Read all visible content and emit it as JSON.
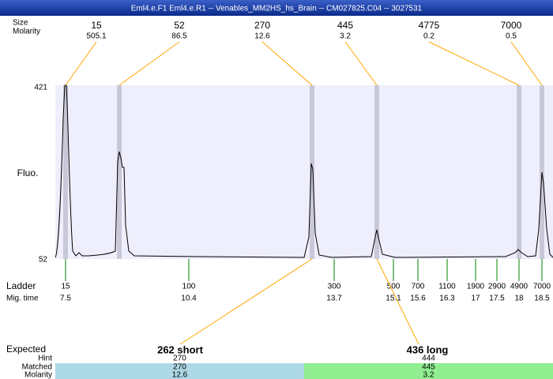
{
  "title": "Eml4.e.F1  Eml4.e.R1 -- Venables_MM2HS_hs_Brain -- CM027825.C04 -- 3027531",
  "row_labels": {
    "size": "Size",
    "molarity": "Molarity",
    "fluo": "Fluo.",
    "ladder": "Ladder",
    "mig_time": "Mig. time",
    "expected": "Expected",
    "hint": "Hint",
    "matched": "Matched",
    "exp_molarity": "Molarity"
  },
  "y_labels": [
    "421",
    "52"
  ],
  "peaks": [
    {
      "size": "15",
      "molarity": "505.1"
    },
    {
      "size": "52",
      "molarity": "86.5"
    },
    {
      "size": "270",
      "molarity": "12.6"
    },
    {
      "size": "445",
      "molarity": "3.2"
    },
    {
      "size": "4775",
      "molarity": "0.2"
    },
    {
      "size": "7000",
      "molarity": "0.5"
    }
  ],
  "ladder": [
    {
      "size": "15",
      "time": "7.5"
    },
    {
      "size": "100",
      "time": "10.4"
    },
    {
      "size": "300",
      "time": "13.7"
    },
    {
      "size": "500",
      "time": "15.1"
    },
    {
      "size": "700",
      "time": "15.6"
    },
    {
      "size": "1100",
      "time": "16.3"
    },
    {
      "size": "1900",
      "time": "17"
    },
    {
      "size": "2900",
      "time": "17.5"
    },
    {
      "size": "4900",
      "time": "18"
    },
    {
      "size": "7000",
      "time": "18.5"
    }
  ],
  "expected": [
    {
      "name": "262 short",
      "hint": "270",
      "matched": "270",
      "molarity": "12.6"
    },
    {
      "name": "436 long",
      "hint": "444",
      "matched": "445",
      "molarity": "3.2"
    }
  ]
}
